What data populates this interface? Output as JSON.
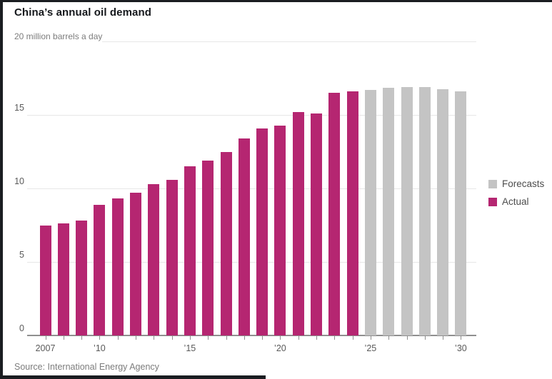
{
  "header": {
    "title": "China’s annual oil demand",
    "unit_label": "20 million barrels a day"
  },
  "legend": [
    {
      "label": "Forecasts",
      "color": "#c4c4c4"
    },
    {
      "label": "Actual",
      "color": "#b52671"
    }
  ],
  "source": "Source: International Energy Agency",
  "colors": {
    "actual": "#b52671",
    "forecast": "#c4c4c4",
    "gridline": "#e7e7e7",
    "axis": "#8f8f8f"
  },
  "chart_data": {
    "type": "bar",
    "title": "China’s annual oil demand",
    "ylabel": "million barrels a day",
    "ylim": [
      0,
      20
    ],
    "yticks": [
      0,
      5,
      10,
      15,
      20
    ],
    "ytick_labels": [
      "0",
      "5",
      "10",
      "15",
      "20"
    ],
    "grid": true,
    "legend_position": "right",
    "categories": [
      2007,
      2008,
      2009,
      2010,
      2011,
      2012,
      2013,
      2014,
      2015,
      2016,
      2017,
      2018,
      2019,
      2020,
      2021,
      2022,
      2023,
      2024,
      2025,
      2026,
      2027,
      2028,
      2029,
      2030
    ],
    "xticks": [
      {
        "year": 2007,
        "label": "2007"
      },
      {
        "year": 2010,
        "label": "’10"
      },
      {
        "year": 2015,
        "label": "’15"
      },
      {
        "year": 2020,
        "label": "’20"
      },
      {
        "year": 2025,
        "label": "’25"
      },
      {
        "year": 2030,
        "label": "’30"
      }
    ],
    "series": [
      {
        "name": "Actual",
        "color": "#b52671",
        "values": [
          7.5,
          7.6,
          7.8,
          8.9,
          9.3,
          9.7,
          10.3,
          10.6,
          11.5,
          11.9,
          12.5,
          13.4,
          14.1,
          14.25,
          15.2,
          15.1,
          16.5,
          16.6,
          null,
          null,
          null,
          null,
          null,
          null
        ]
      },
      {
        "name": "Forecasts",
        "color": "#c4c4c4",
        "values": [
          null,
          null,
          null,
          null,
          null,
          null,
          null,
          null,
          null,
          null,
          null,
          null,
          null,
          null,
          null,
          null,
          null,
          null,
          16.7,
          16.85,
          16.9,
          16.9,
          16.75,
          16.6
        ]
      }
    ]
  }
}
